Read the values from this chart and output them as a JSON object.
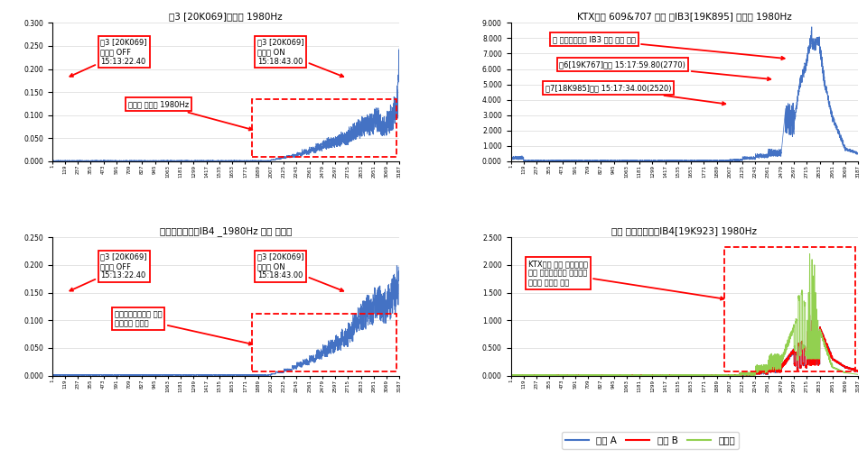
{
  "fig_width": 9.6,
  "fig_height": 5.08,
  "background_color": "#ffffff",
  "titles": [
    "쀨3 [20K069]수신기 1980Hz",
    "KTX산쳌 609&707 중련 하IB3[19K895] 중성점 1980Hz",
    "상임피던스본드IB4 _1980Hz 양단 전류치",
    "상선 임피던스본드IB4[19K923] 1980Hz"
  ],
  "line_color_blue": "#4472C4",
  "line_color_red": "#FF0000",
  "line_color_green": "#92D050",
  "ann_off_text": "쀨3 [20K069]\n송신기 OFF\n15:13:22.40",
  "ann_on_text": "쀨3 [20K069]\n송신기 ON\n15:18:43.00",
  "ann_tl_mid": "수신원 고조파 1980Hz",
  "ann_tr1": "하 임피던스본드 IB3 열차 후미 통과",
  "ann_tr2": "핖6[19K767]점유 15:17:59.80(2770)",
  "ann_tr3": "핗7[18K985]점유 15:17:34.00(2520)",
  "ann_bl_mid": "상선임피던스본드 양단\n고조파의 전류치",
  "ann_br": "KTX산쳌 중련 하선운행시\n상선 임피던스본드 양단에서\n측정된 고조파 파형",
  "xlabels": [
    "1",
    "119",
    "237",
    "355",
    "473",
    "591",
    "709",
    "827",
    "945",
    "1063",
    "1181",
    "1299",
    "1417",
    "1535",
    "1653",
    "1771",
    "1889",
    "2007",
    "2125",
    "2243",
    "2361",
    "2479",
    "2597",
    "2715",
    "2833",
    "2951",
    "3069",
    "3187"
  ],
  "tl_ylim": [
    0.0,
    0.3
  ],
  "tr_ylim": [
    0.0,
    9.0
  ],
  "bl_ylim": [
    0.0,
    0.25
  ],
  "br_ylim": [
    0.0,
    2.5
  ],
  "tl_yticks": [
    0.0,
    0.05,
    0.1,
    0.15,
    0.2,
    0.25,
    0.3
  ],
  "tr_yticks": [
    0.0,
    1.0,
    2.0,
    3.0,
    4.0,
    5.0,
    6.0,
    7.0,
    8.0,
    9.0
  ],
  "bl_yticks": [
    0.0,
    0.05,
    0.1,
    0.15,
    0.2,
    0.25
  ],
  "br_yticks": [
    0.0,
    0.5,
    1.0,
    1.5,
    2.0,
    2.5
  ],
  "legend_labels": [
    "레일 A",
    "레일 B",
    "중성점"
  ],
  "legend_colors": [
    "#4472C4",
    "#FF0000",
    "#92D050"
  ]
}
